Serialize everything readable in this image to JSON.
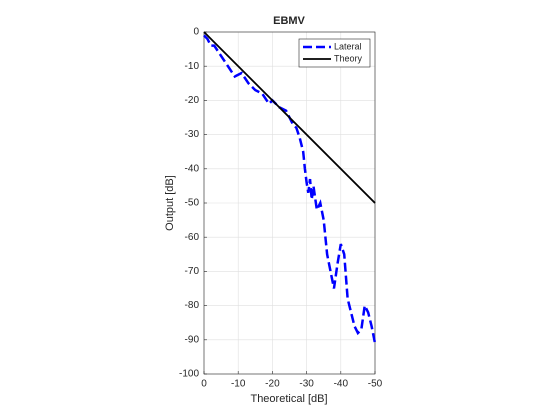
{
  "chart_data": {
    "type": "line",
    "title": "EBMV",
    "xlabel": "Theoretical [dB]",
    "ylabel": "Output [dB]",
    "xlim": [
      0,
      -50
    ],
    "ylim": [
      -100,
      0
    ],
    "xticks": [
      0,
      -10,
      -20,
      -30,
      -40,
      -50
    ],
    "yticks": [
      -100,
      -90,
      -80,
      -70,
      -60,
      -50,
      -40,
      -30,
      -20,
      -10,
      0
    ],
    "grid": true,
    "legend": "upper right",
    "series": [
      {
        "name": "Lateral",
        "color": "#0000ff",
        "linestyle": "dashed",
        "x": [
          0,
          -1,
          -2,
          -3,
          -5,
          -7,
          -9,
          -11,
          -13,
          -15,
          -17,
          -19,
          -20,
          -22,
          -24,
          -25,
          -26,
          -27,
          -28,
          -29,
          -29.5,
          -30,
          -30.5,
          -31,
          -31.5,
          -32,
          -33,
          -34,
          -35,
          -35.5,
          -36,
          -37,
          -38,
          -39,
          -40,
          -41,
          -42,
          -42.5,
          -43,
          -44,
          -45,
          -46,
          -47,
          -48,
          -49,
          -50
        ],
        "values": [
          -1,
          -2,
          -4,
          -4,
          -7,
          -10,
          -13,
          -12,
          -15,
          -17,
          -18,
          -21,
          -20,
          -22,
          -23,
          -25,
          -27,
          -28,
          -31,
          -35,
          -40,
          -44,
          -47,
          -43,
          -49,
          -45,
          -52,
          -50,
          -55,
          -60,
          -65,
          -70,
          -75,
          -68,
          -62,
          -65,
          -78,
          -80,
          -82,
          -86,
          -88,
          -87,
          -80,
          -82,
          -86,
          -91
        ]
      },
      {
        "name": "Theory",
        "color": "#000000",
        "linestyle": "solid",
        "x": [
          0,
          -50
        ],
        "values": [
          0,
          -50
        ]
      }
    ]
  }
}
